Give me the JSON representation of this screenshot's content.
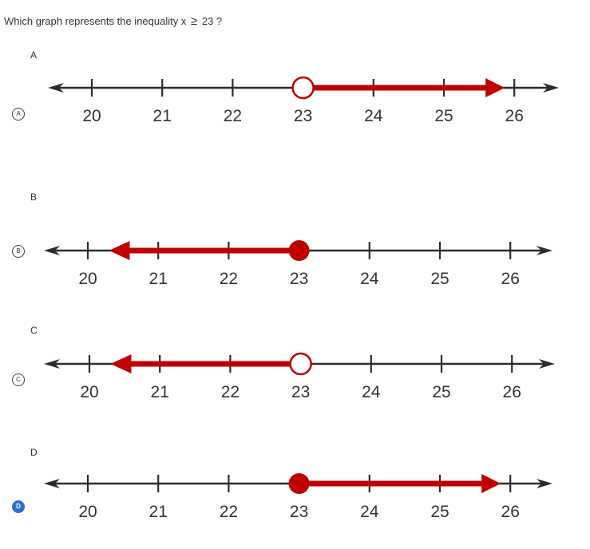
{
  "question": {
    "before": "Which graph represents the inequality x",
    "symbol": "≥",
    "after": "23 ?"
  },
  "colors": {
    "line": "#2b2b2b",
    "ray": "#c00000",
    "selected": "#2f6fd6"
  },
  "options": [
    {
      "id": "A",
      "label": "A",
      "radio": "A",
      "selected": false,
      "numberline": {
        "ticks": [
          "20",
          "21",
          "22",
          "23",
          "24",
          "25",
          "26"
        ],
        "point": "23",
        "filled": false,
        "direction": "right"
      }
    },
    {
      "id": "B",
      "label": "B",
      "radio": "B",
      "selected": false,
      "numberline": {
        "ticks": [
          "20",
          "21",
          "22",
          "23",
          "24",
          "25",
          "26"
        ],
        "point": "23",
        "filled": true,
        "direction": "left"
      }
    },
    {
      "id": "C",
      "label": "C",
      "radio": "C",
      "selected": false,
      "numberline": {
        "ticks": [
          "20",
          "21",
          "22",
          "23",
          "24",
          "25",
          "26"
        ],
        "point": "23",
        "filled": false,
        "direction": "left"
      }
    },
    {
      "id": "D",
      "label": "D",
      "radio": "D",
      "selected": true,
      "numberline": {
        "ticks": [
          "20",
          "21",
          "22",
          "23",
          "24",
          "25",
          "26"
        ],
        "point": "23",
        "filled": true,
        "direction": "right"
      }
    }
  ]
}
